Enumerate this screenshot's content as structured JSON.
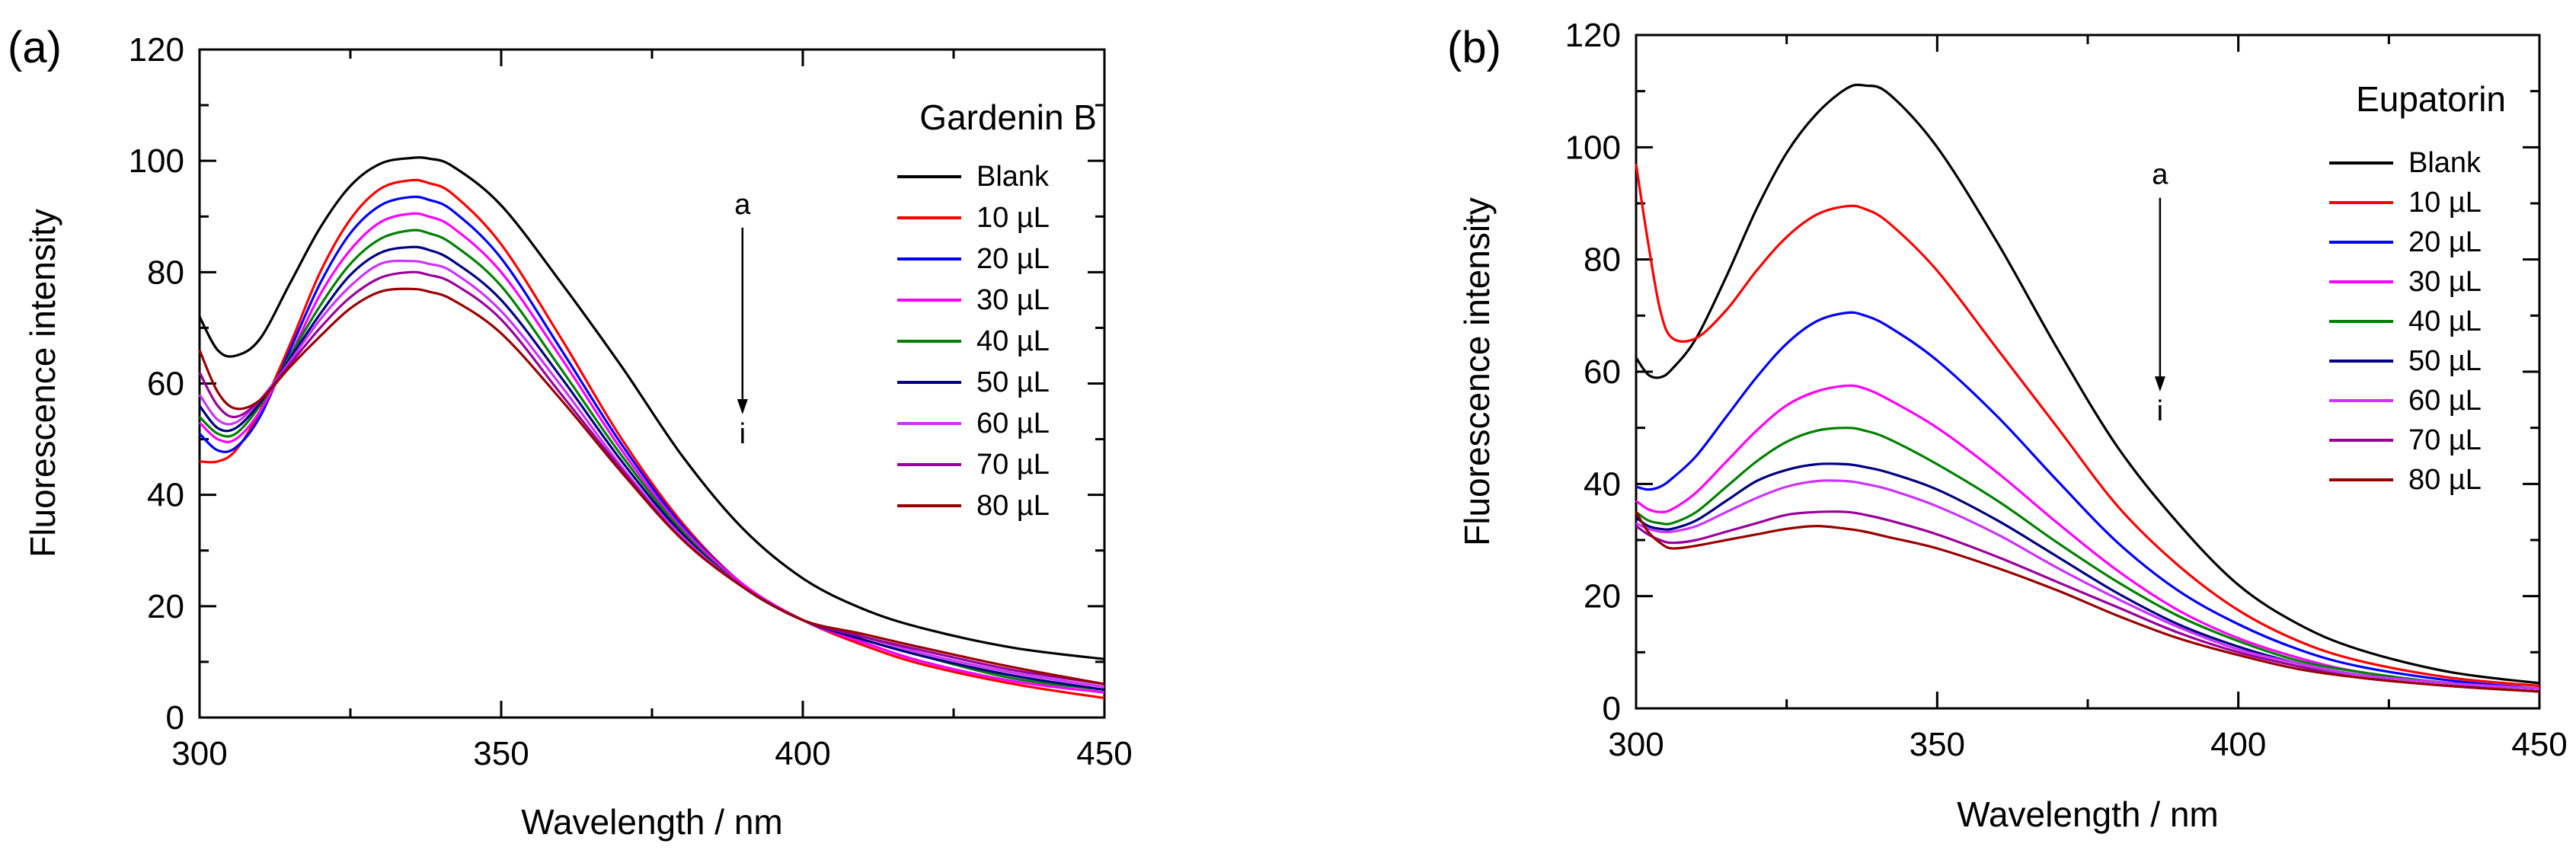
{
  "chart_data": [
    {
      "type": "line",
      "panel_label": "(a)",
      "title": "Gardenin B",
      "xlabel": "Wavelength / nm",
      "ylabel": "Fluorescence intensity",
      "xlim": [
        300,
        450
      ],
      "ylim": [
        0,
        120
      ],
      "xticks": [
        300,
        350,
        400,
        450
      ],
      "yticks": [
        0,
        20,
        40,
        60,
        80,
        100,
        120
      ],
      "grid": false,
      "legend_position": "right",
      "annotation": {
        "top": "a",
        "bottom": "i",
        "x": 390,
        "y_top": 88,
        "y_bottom": 55
      },
      "x": [
        300,
        303,
        306,
        310,
        315,
        320,
        325,
        330,
        335,
        338,
        342,
        350,
        360,
        370,
        380,
        390,
        400,
        410,
        420,
        435,
        450
      ],
      "series": [
        {
          "name": "Blank",
          "color": "#000000",
          "values": [
            72,
            66,
            65,
            68,
            78,
            88,
            95.5,
            99.5,
            100.5,
            100.4,
            99,
            92,
            78,
            63,
            47,
            34,
            25,
            19.5,
            16,
            12.5,
            10.5
          ]
        },
        {
          "name": "10 µL",
          "color": "#ff0000",
          "values": [
            46,
            46,
            48,
            55,
            67,
            80,
            89.5,
            95,
            96.5,
            96,
            94,
            85,
            68,
            50,
            35,
            24,
            17.5,
            13,
            9.5,
            6,
            3.5
          ]
        },
        {
          "name": "20 µL",
          "color": "#0000ff",
          "values": [
            51,
            48,
            48.5,
            54,
            66,
            78,
            87,
            92,
            93.5,
            93,
            91,
            82.5,
            66,
            49,
            34.5,
            24,
            17.5,
            13.5,
            10,
            6.5,
            4.5
          ]
        },
        {
          "name": "30 µL",
          "color": "#ff00ff",
          "values": [
            53,
            50,
            50,
            55,
            65,
            76,
            84,
            89,
            90.5,
            90,
            88,
            80,
            64.5,
            48,
            34,
            24,
            17.5,
            13.5,
            10,
            6.5,
            4.5
          ]
        },
        {
          "name": "40 µL",
          "color": "#008000",
          "values": [
            54,
            51,
            51,
            56,
            65,
            74,
            81.5,
            86,
            87.5,
            87,
            85,
            77.5,
            62.5,
            47,
            33.5,
            23.5,
            17.5,
            14,
            11,
            7,
            5
          ]
        },
        {
          "name": "50 µL",
          "color": "#000080",
          "values": [
            56,
            52,
            52,
            56.5,
            64.5,
            72.5,
            79.5,
            83.5,
            84.5,
            84,
            82,
            75,
            61,
            46,
            33,
            23.5,
            17.5,
            14,
            11,
            7.5,
            5
          ]
        },
        {
          "name": "60 µL",
          "color": "#cc33ff",
          "values": [
            58,
            53.5,
            53,
            57,
            64,
            71.5,
            77.5,
            81.5,
            82,
            81.5,
            80,
            73,
            59.5,
            45,
            32.5,
            23.5,
            17.5,
            14.5,
            11.5,
            8,
            5.5
          ]
        },
        {
          "name": "70 µL",
          "color": "#990099",
          "values": [
            62,
            56,
            54,
            57,
            63.5,
            70,
            75.5,
            79,
            80,
            79.5,
            78,
            71.5,
            58,
            44.5,
            32,
            23.5,
            17.5,
            14.5,
            12,
            8.5,
            6
          ]
        },
        {
          "name": "80 µL",
          "color": "#990000",
          "values": [
            66,
            58.5,
            55.5,
            57,
            63,
            68.5,
            73.5,
            76.5,
            77,
            76.5,
            75,
            69,
            57,
            44,
            32,
            23.5,
            17.5,
            15,
            12.5,
            9,
            6
          ]
        }
      ]
    },
    {
      "type": "line",
      "panel_label": "(b)",
      "title": "Eupatorin",
      "xlabel": "Wavelength / nm",
      "ylabel": "Fluorescence intensity",
      "xlim": [
        300,
        450
      ],
      "ylim": [
        0,
        120
      ],
      "xticks": [
        300,
        350,
        400,
        450
      ],
      "yticks": [
        0,
        20,
        40,
        60,
        80,
        100,
        120
      ],
      "grid": false,
      "legend_position": "right",
      "annotation": {
        "top": "a",
        "bottom": "i",
        "x": 387,
        "y_top": 91,
        "y_bottom": 57
      },
      "x": [
        300,
        302,
        304,
        306,
        310,
        315,
        320,
        325,
        330,
        335,
        338,
        342,
        350,
        360,
        370,
        380,
        390,
        400,
        410,
        420,
        435,
        450
      ],
      "series": [
        {
          "name": "Blank",
          "color": "#000000",
          "values": [
            62.5,
            59.5,
            59,
            60.5,
            66,
            77,
            89,
            99,
            106,
            110.5,
            111,
            109.5,
            100,
            83,
            64,
            46.5,
            33,
            22,
            15,
            10.5,
            6.5,
            4.5
          ]
        },
        {
          "name": "10 µL",
          "color": "#ff0000",
          "values": [
            97,
            83,
            71,
            66,
            66,
            71,
            78,
            84,
            88,
            89.5,
            89,
            86.5,
            78,
            64,
            50,
            36,
            25.5,
            17.5,
            12,
            8.5,
            5.5,
            4
          ]
        },
        {
          "name": "20 µL",
          "color": "#0000ff",
          "values": [
            39.5,
            39,
            39.5,
            41,
            45,
            52,
            59,
            65,
            69,
            70.5,
            70,
            68,
            62,
            52,
            40.5,
            29.5,
            21,
            15,
            10.5,
            7.5,
            5,
            3.5
          ]
        },
        {
          "name": "30 µL",
          "color": "#ff00ff",
          "values": [
            37,
            35.5,
            35,
            35.5,
            38.5,
            44,
            49.5,
            54,
            56.5,
            57.5,
            57,
            55,
            50,
            42,
            33,
            24.5,
            17.5,
            12.5,
            9,
            6.5,
            4.5,
            3.5
          ]
        },
        {
          "name": "40 µL",
          "color": "#008000",
          "values": [
            35,
            33.5,
            33,
            33,
            35,
            39.5,
            44,
            47.5,
            49.5,
            50,
            49.5,
            48,
            43.5,
            37,
            29.5,
            22.5,
            16.5,
            12,
            8.5,
            6.5,
            4.5,
            3.5
          ]
        },
        {
          "name": "50 µL",
          "color": "#000080",
          "values": [
            34,
            32.5,
            32,
            32,
            33.5,
            37,
            40.5,
            42.5,
            43.5,
            43.5,
            43,
            42,
            39,
            33.5,
            27,
            20.5,
            15,
            11,
            8,
            6,
            4.5,
            3.5
          ]
        },
        {
          "name": "60 µL",
          "color": "#cc33ff",
          "values": [
            33,
            32,
            31.5,
            31.5,
            32.5,
            35,
            37.5,
            39.5,
            40.5,
            40.5,
            40,
            39,
            36,
            31,
            25,
            19.5,
            14.5,
            10.5,
            8,
            6,
            4.5,
            3.5
          ]
        },
        {
          "name": "70 µL",
          "color": "#990099",
          "values": [
            32.5,
            31,
            30,
            29.5,
            30,
            31.5,
            33,
            34.5,
            35,
            35,
            34.5,
            33.5,
            31,
            27,
            22.5,
            18,
            13.5,
            10,
            7.5,
            5.5,
            4,
            3
          ]
        },
        {
          "name": "80 µL",
          "color": "#990000",
          "values": [
            35,
            31.5,
            29.5,
            28.5,
            29,
            30,
            31,
            32,
            32.5,
            32,
            31.5,
            30.5,
            28.5,
            25,
            21,
            16.5,
            12.5,
            9.5,
            7,
            5.5,
            4,
            3
          ]
        }
      ]
    }
  ]
}
